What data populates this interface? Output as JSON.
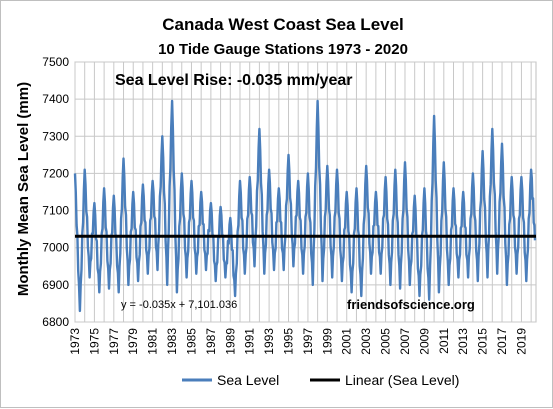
{
  "chart_data": {
    "type": "line",
    "title": "Canada  West Coast Sea Level",
    "subtitle": "10 Tide Gauge Stations 1973 - 2020",
    "ylabel": "Monthly Mean Sea Level (mm)",
    "xlabel": "",
    "ylim": [
      6800,
      7500
    ],
    "yticks": [
      6800,
      6900,
      7000,
      7100,
      7200,
      7300,
      7400,
      7500
    ],
    "xlim": [
      1973,
      2020.5
    ],
    "xticks": [
      "1973",
      "1975",
      "1977",
      "1979",
      "1981",
      "1983",
      "1985",
      "1987",
      "1989",
      "1991",
      "1993",
      "1995",
      "1997",
      "1999",
      "2001",
      "2003",
      "2005",
      "2007",
      "2009",
      "2011",
      "2013",
      "2015",
      "2017",
      "2019"
    ],
    "grid": true,
    "legend_position": "bottom",
    "annotation_rise": "Sea  Level Rise: -0.035 mm/year",
    "annotation_equation": "y = -0.035x + 7,101.036",
    "annotation_source": "friendsofscience.org",
    "series": [
      {
        "name": "Sea Level",
        "color": "#4a7ebb",
        "note_values": "approximate monthly peaks (winter) and troughs (summer) read from the chart",
        "x": [
          1973.0,
          1973.5,
          1974.0,
          1974.5,
          1975.0,
          1975.5,
          1976.0,
          1976.5,
          1977.0,
          1977.5,
          1978.0,
          1978.5,
          1979.0,
          1979.5,
          1980.0,
          1980.5,
          1981.0,
          1981.5,
          1982.0,
          1982.5,
          1983.0,
          1983.5,
          1984.0,
          1984.5,
          1985.0,
          1985.5,
          1986.0,
          1986.5,
          1987.0,
          1987.5,
          1988.0,
          1988.5,
          1989.0,
          1989.5,
          1990.0,
          1990.5,
          1991.0,
          1991.5,
          1992.0,
          1992.5,
          1993.0,
          1993.5,
          1994.0,
          1994.5,
          1995.0,
          1995.5,
          1996.0,
          1996.5,
          1997.0,
          1997.5,
          1998.0,
          1998.5,
          1999.0,
          1999.5,
          2000.0,
          2000.5,
          2001.0,
          2001.5,
          2002.0,
          2002.5,
          2003.0,
          2003.5,
          2004.0,
          2004.5,
          2005.0,
          2005.5,
          2006.0,
          2006.5,
          2007.0,
          2007.5,
          2008.0,
          2008.5,
          2009.0,
          2009.5,
          2010.0,
          2010.5,
          2011.0,
          2011.5,
          2012.0,
          2012.5,
          2013.0,
          2013.5,
          2014.0,
          2014.5,
          2015.0,
          2015.5,
          2016.0,
          2016.5,
          2017.0,
          2017.5,
          2018.0,
          2018.5,
          2019.0,
          2019.5,
          2020.0,
          2020.4
        ],
        "values": [
          7200,
          6830,
          7210,
          6920,
          7120,
          6880,
          7160,
          6890,
          7140,
          6880,
          7240,
          6900,
          7150,
          6910,
          7170,
          6930,
          7180,
          6940,
          7300,
          6900,
          7395,
          6880,
          7200,
          6920,
          7180,
          6930,
          7150,
          6940,
          7120,
          6910,
          7110,
          6920,
          7080,
          6870,
          7180,
          6930,
          7190,
          6950,
          7320,
          6930,
          7210,
          6940,
          7160,
          6940,
          7250,
          6950,
          7180,
          6930,
          7200,
          6900,
          7395,
          6910,
          7220,
          6920,
          7210,
          6910,
          7150,
          6880,
          7160,
          6870,
          7220,
          6930,
          7150,
          6930,
          7190,
          6900,
          7210,
          6890,
          7230,
          6900,
          7140,
          6870,
          7160,
          6860,
          7355,
          6880,
          7230,
          6900,
          7160,
          6920,
          7150,
          6920,
          7200,
          6910,
          7260,
          6920,
          7320,
          6930,
          7280,
          6900,
          7190,
          6930,
          7190,
          6910,
          7210,
          7020
        ]
      },
      {
        "name": "Linear (Sea Level)",
        "color": "#000000",
        "x": [
          1973,
          2020.5
        ],
        "values": [
          7031,
          7031
        ]
      }
    ]
  }
}
